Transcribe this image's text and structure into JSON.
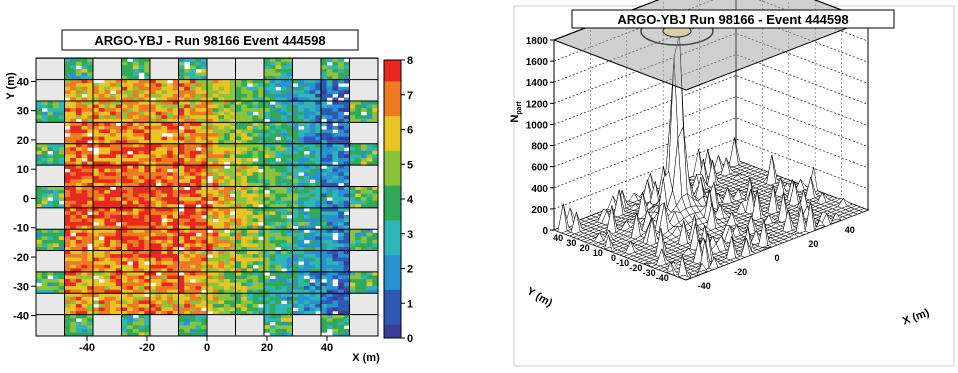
{
  "chart_data": [
    {
      "type": "heatmap",
      "title": "ARGO-YBJ     -     Run 98166     Event 444598",
      "xlabel": "X (m)",
      "ylabel": "Y (m)",
      "xlim": [
        -57,
        57
      ],
      "ylim": [
        -47,
        48
      ],
      "x_ticks": [
        "-40",
        "-20",
        "0",
        "20",
        "40"
      ],
      "y_ticks": [
        "-40",
        "-30",
        "-20",
        "-10",
        "0",
        "10",
        "20",
        "30",
        "40"
      ],
      "z_range": [
        0,
        8
      ],
      "z_ticks": [
        "0",
        "1",
        "2",
        "3",
        "4",
        "5",
        "6",
        "7",
        "8"
      ],
      "grid": true,
      "legend": "right colorbar",
      "description_values": "core density > 7 for x in [-40,0], falling to 2-4 near x=40"
    },
    {
      "type": "area",
      "title": "ARGO-YBJ       Run 98166  -  Event 444598",
      "xlabel": "X (m)",
      "ylabel": "Y (m)",
      "zlabel": "N",
      "zlabel_sub": "part",
      "x_ticks": [
        "-40",
        "-20",
        "0",
        "20",
        "40"
      ],
      "y_ticks": [
        "40",
        "30",
        "20",
        "10",
        "0",
        "-10",
        "-20",
        "-30",
        "-40"
      ],
      "z_ticks": [
        "0",
        "200",
        "400",
        "600",
        "800",
        "1000",
        "1200",
        "1400",
        "1600",
        "1800"
      ],
      "zlim": [
        0,
        1800
      ],
      "peak": {
        "x": -10,
        "y": 12,
        "z": 1700
      }
    }
  ]
}
